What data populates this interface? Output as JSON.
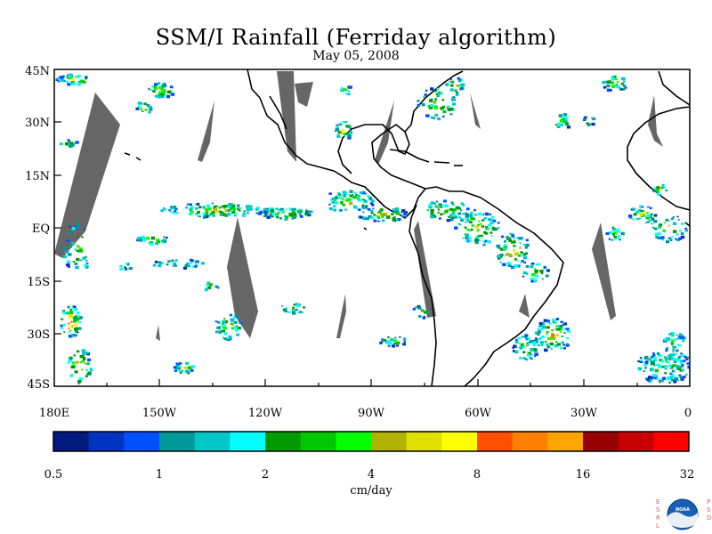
{
  "title": "SSM/I Rainfall (Ferriday algorithm)",
  "date": "May 05, 2008",
  "lat_labels": [
    "45N",
    "30N",
    "15N",
    "EQ",
    "15S",
    "30S",
    "45S"
  ],
  "lon_labels": [
    "180E",
    "150W",
    "120W",
    "90W",
    "60W",
    "30W",
    "0"
  ],
  "colorbar": {
    "units": "cm/day",
    "tick_labels": [
      "0.5",
      "1",
      "2",
      "4",
      "8",
      "16",
      "32"
    ],
    "colors": [
      "#001a80",
      "#0033c0",
      "#0050ff",
      "#00999a",
      "#00c8c8",
      "#00ffff",
      "#009900",
      "#00c800",
      "#00ff00",
      "#b2b200",
      "#e0e000",
      "#ffff00",
      "#ff5000",
      "#ff8000",
      "#ffa500",
      "#960000",
      "#c80000",
      "#ff0000"
    ]
  },
  "colors": {
    "no_data_swath": "#666666",
    "coastline": "#000000",
    "background": "#ffffff"
  },
  "logo": {
    "left_text": "ESRL",
    "right_text": "PSD",
    "center_text": "NOAA"
  }
}
